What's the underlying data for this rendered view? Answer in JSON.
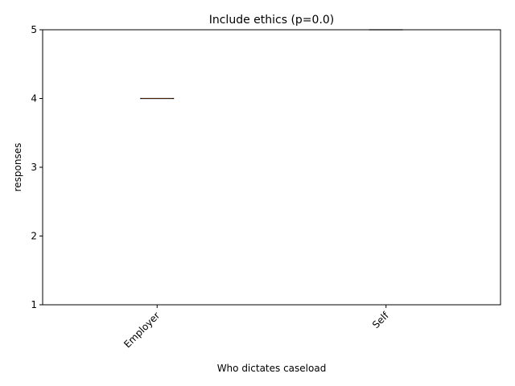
{
  "chart_data": {
    "type": "box",
    "title": "Include ethics (p=0.0)",
    "xlabel": "Who dictates caseload",
    "ylabel": "responses",
    "categories": [
      "Employer",
      "Self"
    ],
    "values": [
      4,
      5
    ],
    "ylim": [
      1,
      5
    ],
    "yticks": [
      1,
      2,
      3,
      4,
      5
    ],
    "ytick_labels": [
      "1",
      "2",
      "3",
      "4",
      "5"
    ],
    "grid": false,
    "legend": "none"
  }
}
